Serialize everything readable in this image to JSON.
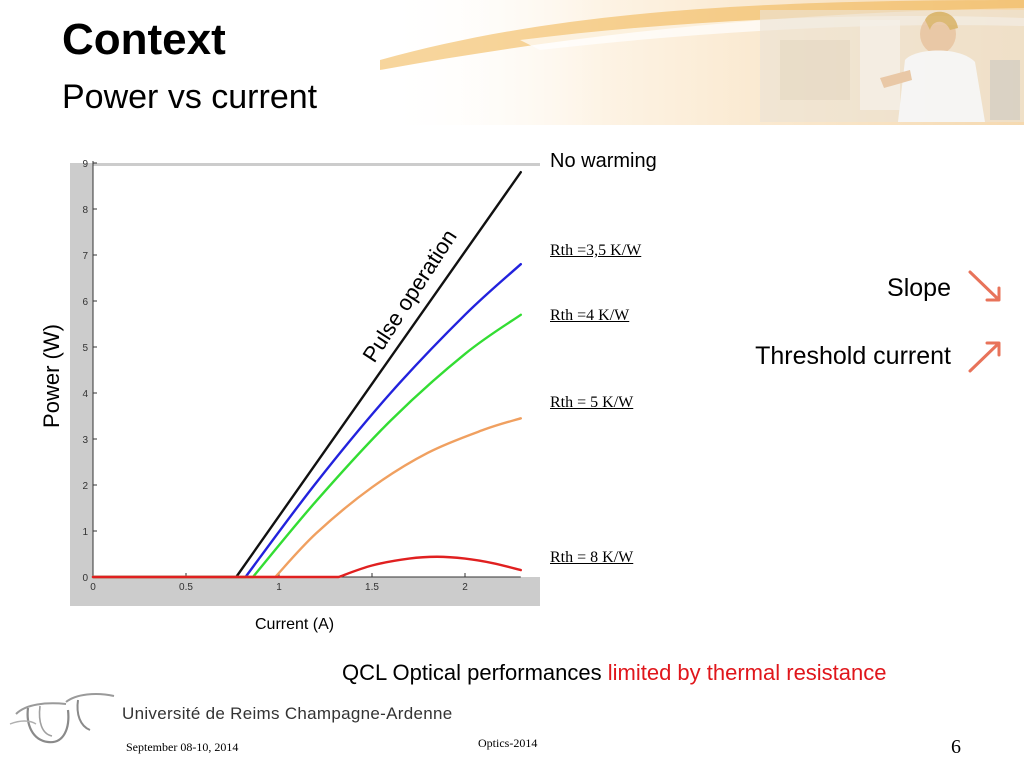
{
  "slide": {
    "title": "Context",
    "subtitle": "Power vs current",
    "slope_label": "Slope",
    "threshold_label": "Threshold current",
    "bottom_text_main": "QCL Optical performances ",
    "bottom_text_highlight": "limited by thermal resistance",
    "university": "Université de Reims Champagne-Ardenne",
    "footer_date": "September 08-10, 2014",
    "footer_conference": "Optics-2014",
    "page_number": "6",
    "colors": {
      "highlight": "#e0161b",
      "arrow": "#e8735a"
    },
    "icons": {
      "slope_arrow": "arrow-down-right-icon",
      "threshold_arrow": "arrow-up-right-icon",
      "logo": "university-logo-icon"
    }
  },
  "chart_data": {
    "type": "line",
    "xlabel": "Current (A)",
    "ylabel": "Power (W)",
    "xlim": [
      0,
      2.3
    ],
    "ylim": [
      0,
      9
    ],
    "xticks": [
      "0",
      "0.5",
      "1",
      "1.5",
      "2"
    ],
    "yticks": [
      "0",
      "1",
      "2",
      "3",
      "4",
      "5",
      "6",
      "7",
      "8",
      "9"
    ],
    "grid": false,
    "annotations": [
      "No warming",
      "Pulse operation"
    ],
    "series": [
      {
        "name": "No warming",
        "color": "#111111",
        "x": [
          0,
          0.77,
          2.3
        ],
        "y": [
          0,
          0,
          8.8
        ]
      },
      {
        "name": "Rth =3,5 K/W",
        "color": "#2222dd",
        "x": [
          0,
          0.82,
          1.2,
          1.6,
          2.0,
          2.3
        ],
        "y": [
          0,
          0,
          2.05,
          4.0,
          5.7,
          6.8
        ]
      },
      {
        "name": "Rth =4 K/W",
        "color": "#33dd33",
        "x": [
          0,
          0.86,
          1.2,
          1.6,
          2.0,
          2.3
        ],
        "y": [
          0,
          0,
          1.65,
          3.4,
          4.85,
          5.7
        ]
      },
      {
        "name": "Rth = 5 K/W",
        "color": "#f0a060",
        "x": [
          0,
          0.98,
          1.2,
          1.5,
          1.8,
          2.1,
          2.3
        ],
        "y": [
          0,
          0,
          0.95,
          1.95,
          2.7,
          3.2,
          3.45
        ]
      },
      {
        "name": "Rth = 8 K/W",
        "color": "#e02020",
        "x": [
          0,
          1.32,
          1.5,
          1.7,
          1.85,
          2.0,
          2.15,
          2.3
        ],
        "y": [
          0,
          0,
          0.25,
          0.4,
          0.44,
          0.4,
          0.3,
          0.15
        ]
      }
    ]
  }
}
